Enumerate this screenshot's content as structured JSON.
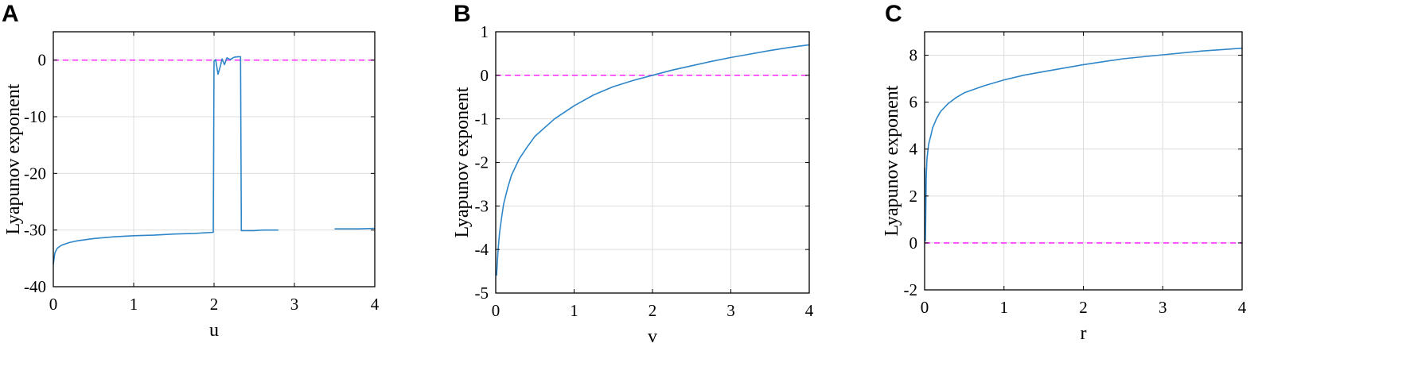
{
  "figure": {
    "panel_letters": [
      "A",
      "B",
      "C"
    ]
  },
  "chart_data": [
    {
      "type": "line",
      "panel": "A",
      "xlabel": "u",
      "ylabel": "Lyapunov exponent",
      "xlim": [
        0,
        4
      ],
      "ylim": [
        -40,
        5
      ],
      "xticks": [
        0,
        1,
        2,
        3,
        4
      ],
      "yticks": [
        -40,
        -30,
        -20,
        -10,
        0
      ],
      "xtick_labels": [
        "0",
        "1",
        "2",
        "3",
        "4"
      ],
      "ytick_labels": [
        "-40",
        "-30",
        "-20",
        "-10",
        "0"
      ],
      "grid": true,
      "reference_line": {
        "y": 0,
        "style": "dashed",
        "color": "#ff33ff"
      },
      "line_color": "#2e86c8",
      "series": [
        {
          "x": [
            0,
            0.02,
            0.05,
            0.1,
            0.2,
            0.3,
            0.5,
            0.75,
            1.0,
            1.25,
            1.5,
            1.75,
            1.99,
            2.0,
            2.02,
            2.05,
            2.08,
            2.1,
            2.13,
            2.16,
            2.2,
            2.25,
            2.3,
            2.33,
            2.34,
            2.4,
            2.5,
            2.6,
            2.7,
            2.8,
            3.0,
            3.2,
            3.5,
            3.8,
            4.0
          ],
          "y": [
            -36,
            -34,
            -33.2,
            -32.7,
            -32.2,
            -31.9,
            -31.5,
            -31.2,
            -31.0,
            -30.9,
            -30.7,
            -30.6,
            -30.4,
            -0.2,
            0.1,
            -2.5,
            -1.0,
            0.2,
            -0.8,
            0.4,
            0.1,
            0.5,
            0.6,
            0.6,
            -30.1,
            -30.1,
            -30.1,
            -30.0,
            -30.0,
            -30.0,
            null,
            null,
            -29.8,
            -29.8,
            -29.7
          ]
        }
      ]
    },
    {
      "type": "line",
      "panel": "B",
      "xlabel": "v",
      "ylabel": "Lyapunov exponent",
      "xlim": [
        0,
        4
      ],
      "ylim": [
        -5,
        1
      ],
      "xticks": [
        0,
        1,
        2,
        3,
        4
      ],
      "yticks": [
        -5,
        -4,
        -3,
        -2,
        -1,
        0,
        1
      ],
      "xtick_labels": [
        "0",
        "1",
        "2",
        "3",
        "4"
      ],
      "ytick_labels": [
        "-5",
        "-4",
        "-3",
        "-2",
        "-1",
        "0",
        "1"
      ],
      "grid": true,
      "reference_line": {
        "y": 0,
        "style": "dashed",
        "color": "#ff33ff"
      },
      "line_color": "#2e86c8",
      "series": [
        {
          "x": [
            0.01,
            0.03,
            0.05,
            0.08,
            0.1,
            0.15,
            0.2,
            0.3,
            0.4,
            0.5,
            0.75,
            1.0,
            1.25,
            1.5,
            1.75,
            2.0,
            2.25,
            2.5,
            2.75,
            3.0,
            3.25,
            3.5,
            3.75,
            4.0
          ],
          "y": [
            -4.6,
            -4.0,
            -3.6,
            -3.2,
            -2.96,
            -2.6,
            -2.3,
            -1.92,
            -1.65,
            -1.4,
            -1.0,
            -0.7,
            -0.45,
            -0.26,
            -0.12,
            0.0,
            0.12,
            0.22,
            0.32,
            0.41,
            0.49,
            0.57,
            0.64,
            0.7
          ]
        }
      ]
    },
    {
      "type": "line",
      "panel": "C",
      "xlabel": "r",
      "ylabel": "Lyapunov exponent",
      "xlim": [
        0,
        4
      ],
      "ylim": [
        -2,
        9
      ],
      "xticks": [
        0,
        1,
        2,
        3,
        4
      ],
      "yticks": [
        -2,
        0,
        2,
        4,
        6,
        8
      ],
      "xtick_labels": [
        "0",
        "1",
        "2",
        "3",
        "4"
      ],
      "ytick_labels": [
        "-2",
        "0",
        "2",
        "4",
        "6",
        "8"
      ],
      "grid": true,
      "reference_line": {
        "y": 0,
        "style": "dashed",
        "color": "#ff33ff"
      },
      "line_color": "#2e86c8",
      "series": [
        {
          "x": [
            0.0,
            0.01,
            0.02,
            0.03,
            0.05,
            0.08,
            0.1,
            0.15,
            0.2,
            0.3,
            0.4,
            0.5,
            0.75,
            1.0,
            1.25,
            1.5,
            2.0,
            2.5,
            3.0,
            3.5,
            4.0
          ],
          "y": [
            3.2,
            0.1,
            2.8,
            3.6,
            4.2,
            4.6,
            4.9,
            5.3,
            5.6,
            5.95,
            6.2,
            6.4,
            6.7,
            6.95,
            7.15,
            7.3,
            7.6,
            7.85,
            8.02,
            8.18,
            8.3
          ]
        }
      ]
    }
  ]
}
